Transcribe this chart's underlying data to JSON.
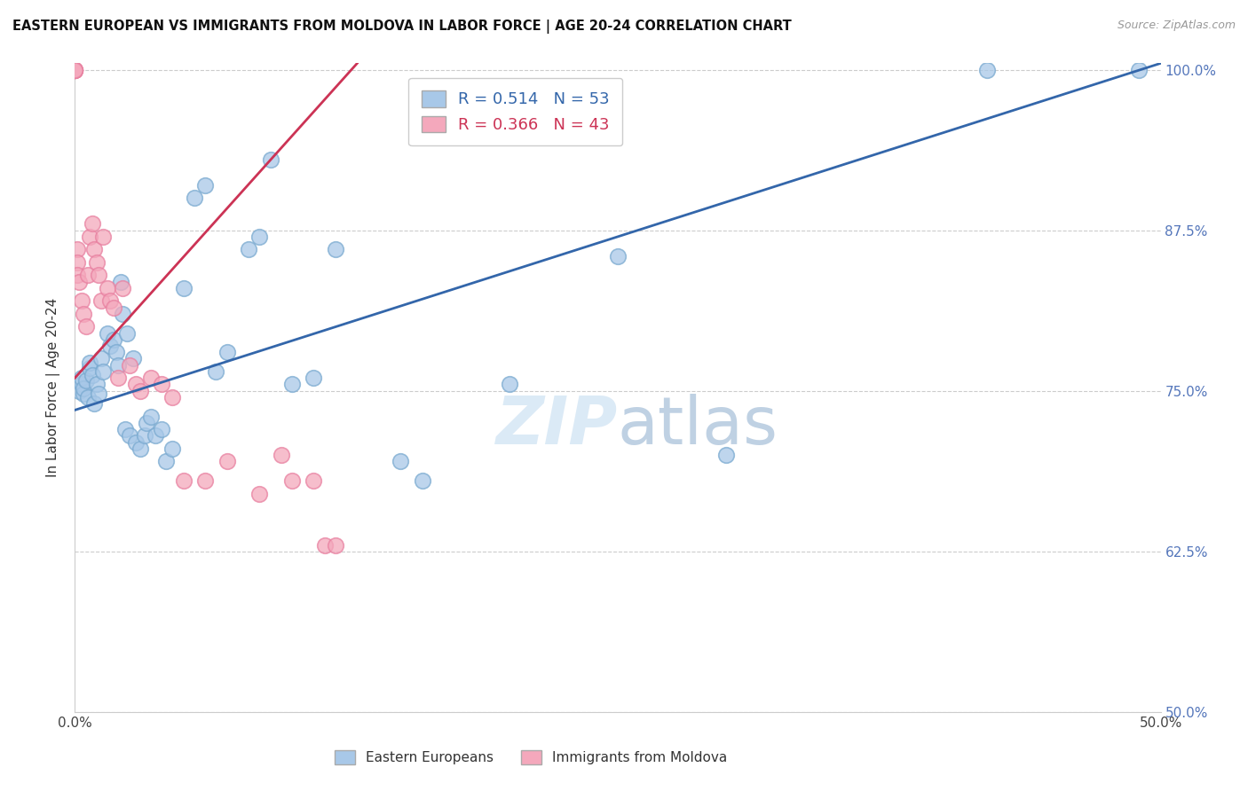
{
  "title": "EASTERN EUROPEAN VS IMMIGRANTS FROM MOLDOVA IN LABOR FORCE | AGE 20-24 CORRELATION CHART",
  "source": "Source: ZipAtlas.com",
  "ylabel": "In Labor Force | Age 20-24",
  "xlim": [
    0.0,
    0.5
  ],
  "ylim": [
    0.5,
    1.005
  ],
  "yticks": [
    0.5,
    0.625,
    0.75,
    0.875,
    1.0
  ],
  "ytick_labels": [
    "50.0%",
    "62.5%",
    "75.0%",
    "87.5%",
    "100.0%"
  ],
  "xticks": [
    0.0,
    0.1,
    0.2,
    0.3,
    0.4,
    0.5
  ],
  "xtick_labels": [
    "0.0%",
    "",
    "",
    "",
    "",
    "50.0%"
  ],
  "blue_R": 0.514,
  "blue_N": 53,
  "pink_R": 0.366,
  "pink_N": 43,
  "blue_color": "#a8c8e8",
  "pink_color": "#f4a8bc",
  "blue_edge_color": "#7aaad0",
  "pink_edge_color": "#e880a0",
  "blue_line_color": "#3366aa",
  "pink_line_color": "#cc3355",
  "blue_line_x0": 0.0,
  "blue_line_y0": 0.735,
  "blue_line_x1": 0.5,
  "blue_line_y1": 1.005,
  "pink_line_x0": 0.0,
  "pink_line_y0": 0.76,
  "pink_line_x1": 0.13,
  "pink_line_y1": 1.005,
  "blue_scatter_x": [
    0.002,
    0.003,
    0.003,
    0.004,
    0.004,
    0.005,
    0.006,
    0.007,
    0.007,
    0.008,
    0.009,
    0.01,
    0.011,
    0.012,
    0.013,
    0.015,
    0.016,
    0.018,
    0.019,
    0.02,
    0.021,
    0.022,
    0.023,
    0.024,
    0.025,
    0.027,
    0.028,
    0.03,
    0.032,
    0.033,
    0.035,
    0.037,
    0.04,
    0.042,
    0.045,
    0.05,
    0.055,
    0.06,
    0.065,
    0.07,
    0.08,
    0.085,
    0.09,
    0.1,
    0.11,
    0.12,
    0.15,
    0.16,
    0.2,
    0.25,
    0.3,
    0.42,
    0.49
  ],
  "blue_scatter_y": [
    0.75,
    0.755,
    0.76,
    0.748,
    0.752,
    0.758,
    0.745,
    0.768,
    0.772,
    0.762,
    0.74,
    0.755,
    0.748,
    0.775,
    0.765,
    0.795,
    0.785,
    0.79,
    0.78,
    0.77,
    0.835,
    0.81,
    0.72,
    0.795,
    0.715,
    0.775,
    0.71,
    0.705,
    0.715,
    0.725,
    0.73,
    0.715,
    0.72,
    0.695,
    0.705,
    0.83,
    0.9,
    0.91,
    0.765,
    0.78,
    0.86,
    0.87,
    0.93,
    0.755,
    0.76,
    0.86,
    0.695,
    0.68,
    0.755,
    0.855,
    0.7,
    1.0,
    1.0
  ],
  "pink_scatter_x": [
    0.0,
    0.0,
    0.0,
    0.0,
    0.0,
    0.0,
    0.0,
    0.0,
    0.001,
    0.001,
    0.001,
    0.002,
    0.003,
    0.004,
    0.005,
    0.006,
    0.007,
    0.008,
    0.009,
    0.01,
    0.011,
    0.012,
    0.013,
    0.015,
    0.016,
    0.018,
    0.02,
    0.022,
    0.025,
    0.028,
    0.03,
    0.035,
    0.04,
    0.045,
    0.05,
    0.06,
    0.07,
    0.085,
    0.095,
    0.1,
    0.11,
    0.115,
    0.12
  ],
  "pink_scatter_y": [
    1.0,
    1.0,
    1.0,
    1.0,
    1.0,
    1.0,
    1.0,
    1.0,
    0.86,
    0.85,
    0.84,
    0.835,
    0.82,
    0.81,
    0.8,
    0.84,
    0.87,
    0.88,
    0.86,
    0.85,
    0.84,
    0.82,
    0.87,
    0.83,
    0.82,
    0.815,
    0.76,
    0.83,
    0.77,
    0.755,
    0.75,
    0.76,
    0.755,
    0.745,
    0.68,
    0.68,
    0.695,
    0.67,
    0.7,
    0.68,
    0.68,
    0.63,
    0.63
  ]
}
